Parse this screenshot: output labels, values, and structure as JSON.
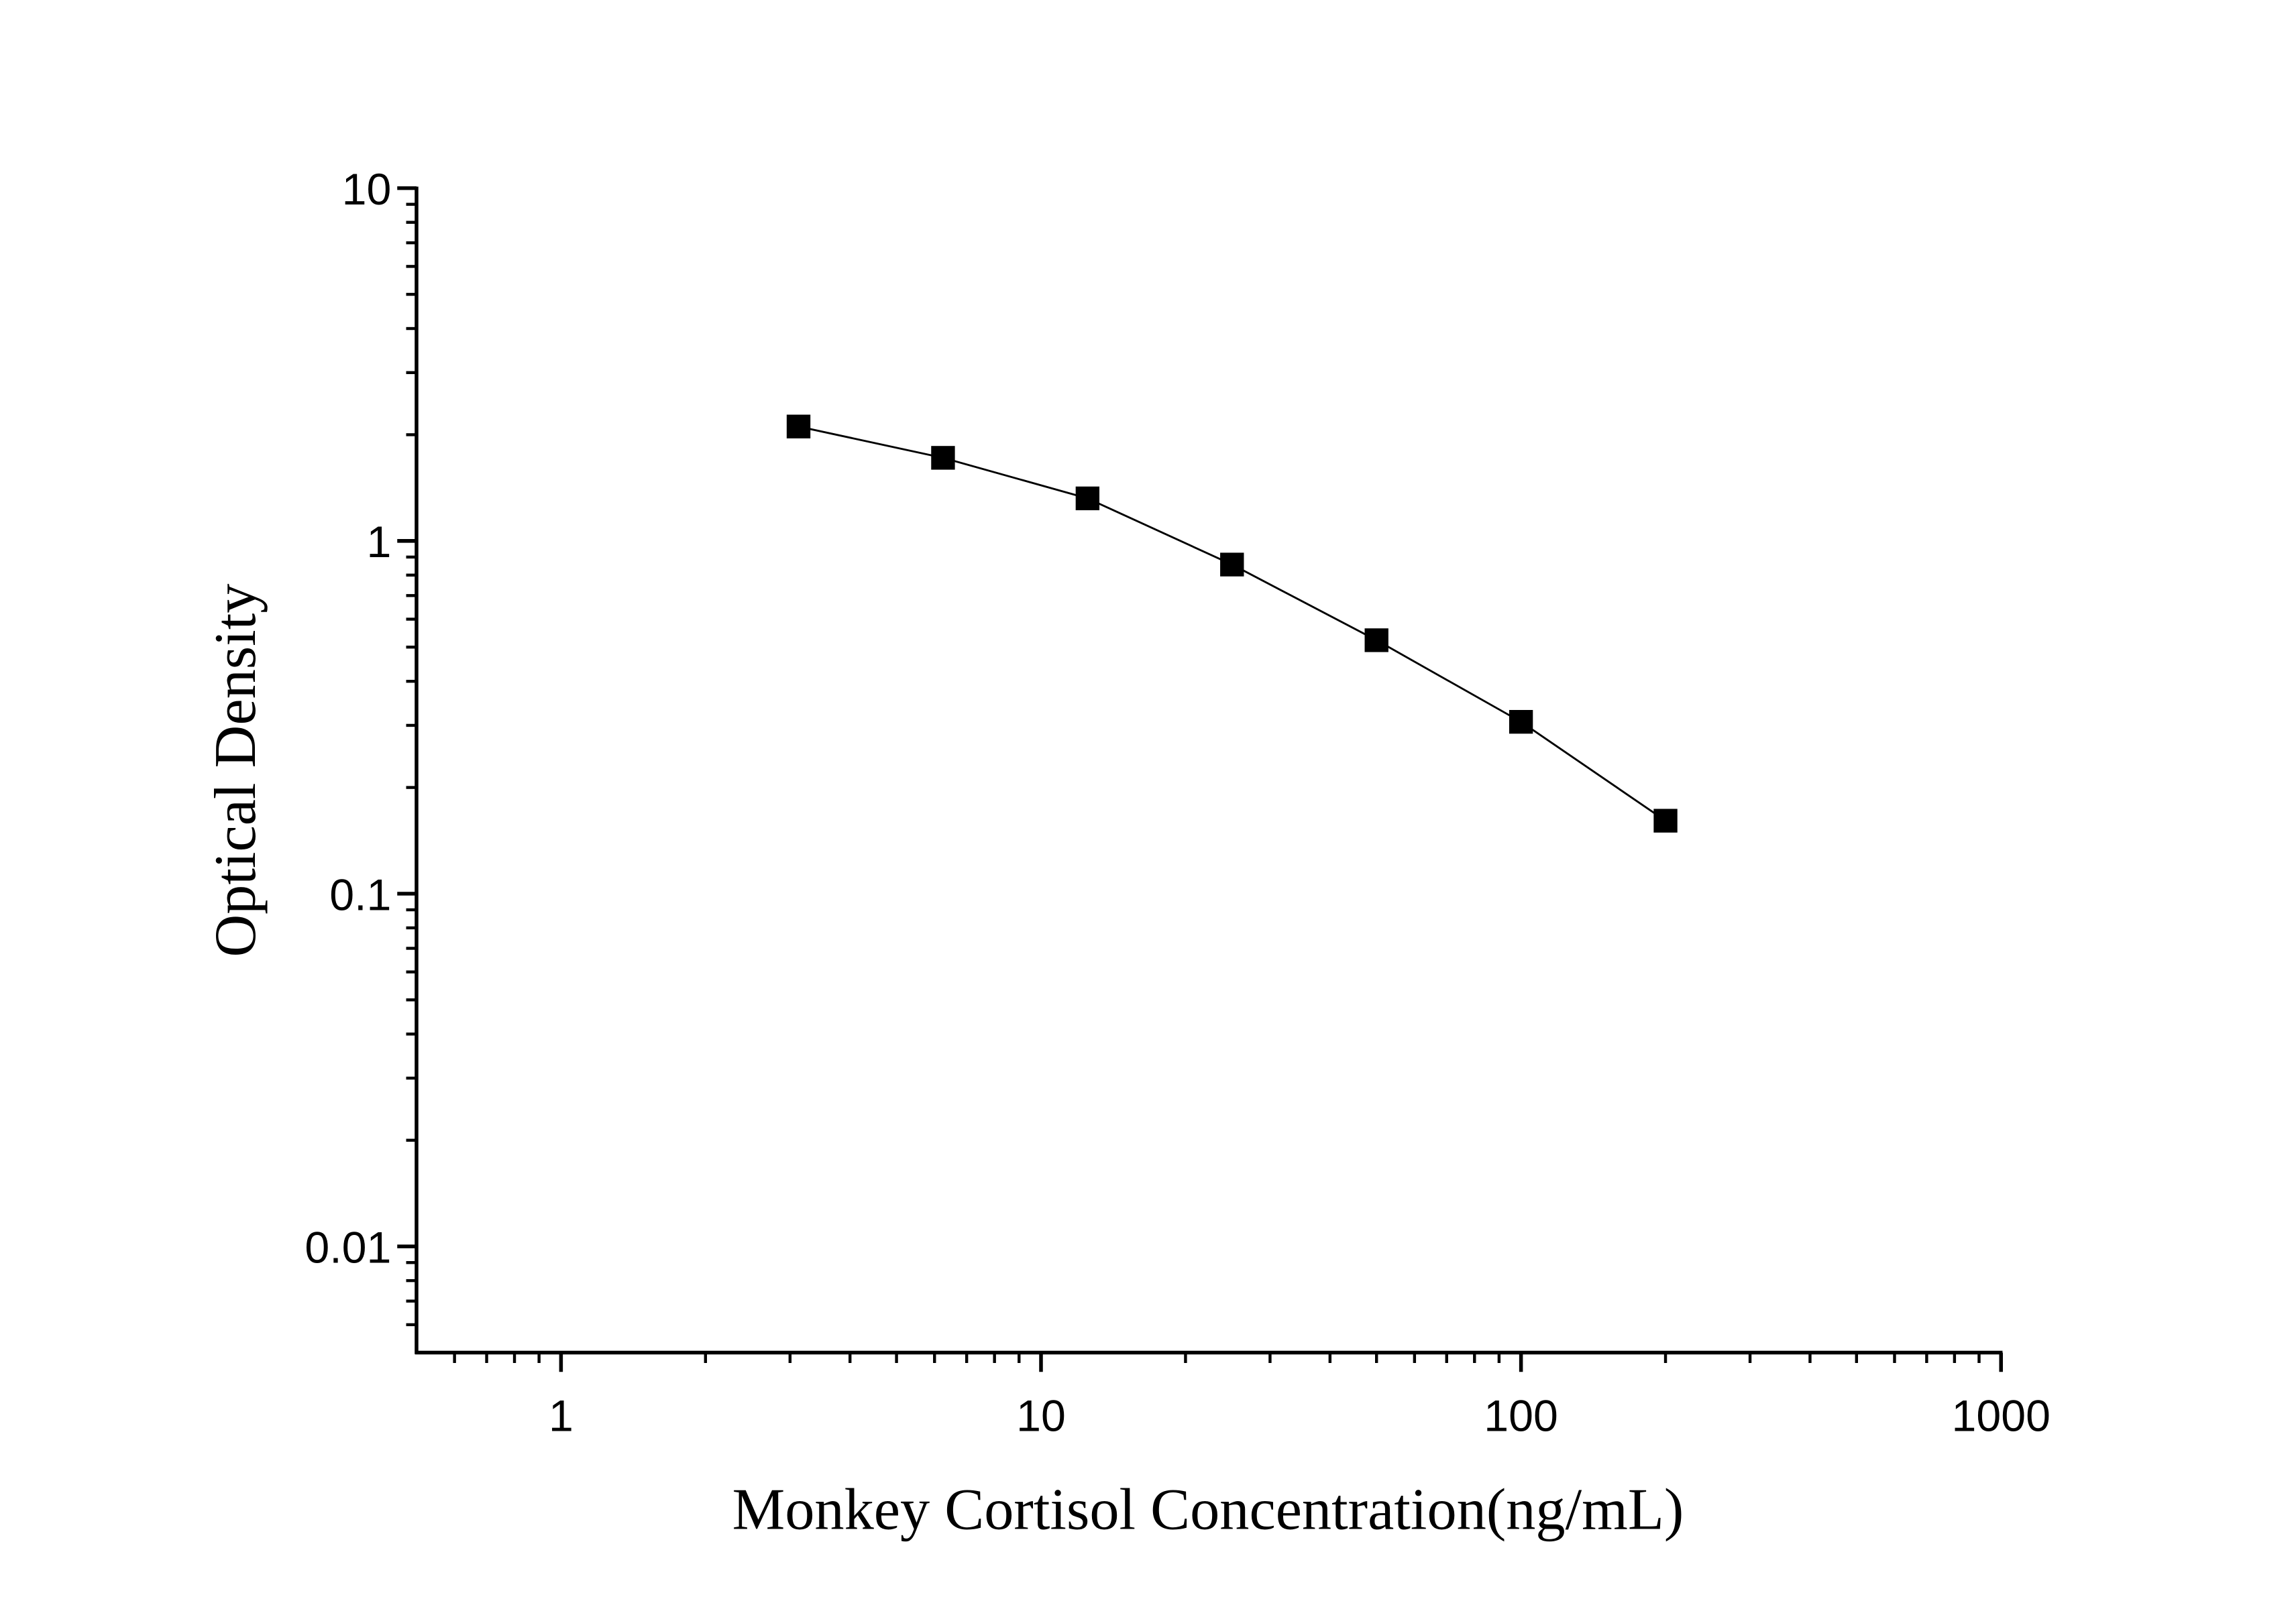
{
  "chart_data": {
    "type": "line",
    "x_label": "Monkey Cortisol Concentration(ng/mL)",
    "y_label": "Optical Density",
    "x": [
      3.125,
      6.25,
      12.5,
      25,
      50,
      100,
      200
    ],
    "series": [
      {
        "color": "#000000",
        "values": [
          2.11,
          1.72,
          1.32,
          0.857,
          0.523,
          0.307,
          0.161
        ]
      }
    ],
    "xlim": [
      0.5,
      1000
    ],
    "ylim": [
      0.005,
      10
    ],
    "xticks": [
      1,
      10,
      100,
      1000
    ],
    "yticks": [
      0.01,
      0.1,
      1,
      10
    ],
    "xscale": "log",
    "yscale": "log",
    "grid": false
  }
}
